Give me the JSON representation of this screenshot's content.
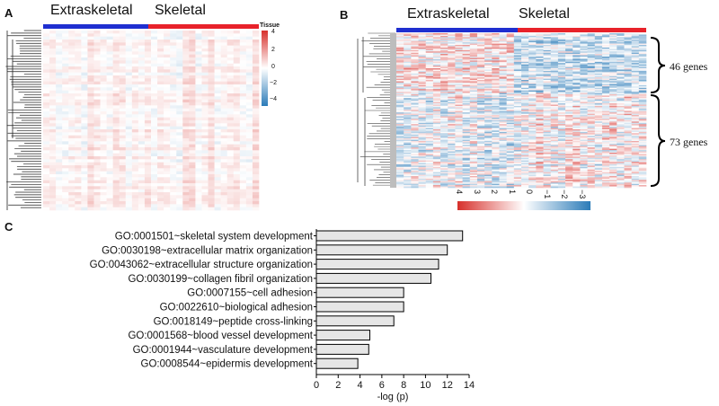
{
  "figure": {
    "panel_a": {
      "label": "A",
      "group_left": "Extraskeletal",
      "group_right": "Skeletal",
      "legend_title": "Tissue",
      "legend_ticks": [
        "4",
        "2",
        "0",
        "−2",
        "−4"
      ],
      "colors": {
        "extraskeletal": "#1f2fd0",
        "skeletal": "#e8222a",
        "high": "#d7302b",
        "mid": "#ffffff",
        "low": "#2b7bb8"
      }
    },
    "panel_b": {
      "label": "B",
      "group_left": "Extraskeletal",
      "group_right": "Skeletal",
      "cluster_top": "46 genes",
      "cluster_bottom": "73 genes",
      "scale_ticks": [
        "4",
        "3",
        "2",
        "1",
        "0",
        "−1",
        "−2",
        "−3"
      ]
    },
    "panel_c": {
      "label": "C",
      "chart_data": {
        "type": "bar",
        "orientation": "horizontal",
        "categories": [
          "GO:0001501~skeletal system development",
          "GO:0030198~extracellular matrix organization",
          "GO:0043062~extracellular structure organization",
          "GO:0030199~collagen fibril organization",
          "GO:0007155~cell adhesion",
          "GO:0022610~biological adhesion",
          "GO:0018149~peptide cross-linking",
          "GO:0001568~blood vessel development",
          "GO:0001944~vasculature development",
          "GO:0008544~epidermis development"
        ],
        "values": [
          13.4,
          12.0,
          11.2,
          10.5,
          8.0,
          8.0,
          7.1,
          4.9,
          4.8,
          3.8
        ],
        "xlabel": "-log (p)",
        "xlim": [
          0,
          14
        ],
        "xticks": [
          "0",
          "2",
          "4",
          "6",
          "8",
          "10",
          "12",
          "14"
        ],
        "bar_color": "#e6e6e6"
      }
    }
  }
}
